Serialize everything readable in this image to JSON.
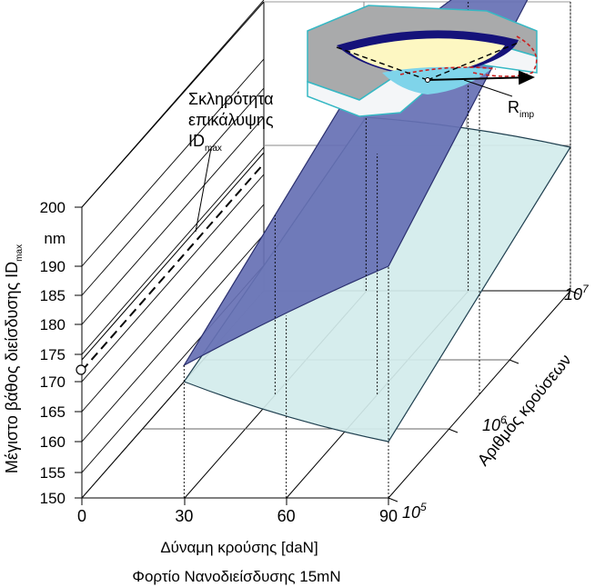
{
  "chart_data": {
    "type": "surface",
    "zlabel_main": "Μέγιστο βάθος διείσδυσης ID",
    "zlabel_sub": "max",
    "zunit": "nm",
    "z_ticks": [
      "150",
      "155",
      "160",
      "165",
      "170",
      "175",
      "180",
      "185",
      "190",
      "200"
    ],
    "z_tick_values": [
      150,
      155,
      160,
      165,
      170,
      175,
      180,
      185,
      190,
      200
    ],
    "x_label_1": "Δύναμη κρούσης [daN]",
    "x_label_2": "Φορτίο Νανοδιείσδυσης 15mN",
    "x_ticks": [
      "0",
      "30",
      "60",
      "90"
    ],
    "x_tick_values": [
      0,
      30,
      60,
      90
    ],
    "y_label": "Αριθμός κρούσεων",
    "y_ticks": [
      {
        "base": "10",
        "exp": "5"
      },
      {
        "base": "10",
        "exp": "6"
      },
      {
        "base": "10",
        "exp": "7"
      }
    ],
    "coating_hardness": {
      "line1": "Σκληρότητα",
      "line2": "επικάλυψης",
      "line3_main": "ID",
      "line3_sub": "max",
      "value_nm": 173
    },
    "inset_label_main": "R",
    "inset_label_sub": "imp",
    "series": [
      {
        "role": "upper-surface",
        "x": [
          30,
          90
        ],
        "y_log": [
          5,
          7
        ],
        "z_at_x30": [
          173,
          189
        ],
        "z_at_x90": [
          190,
          214
        ]
      },
      {
        "role": "lower-surface",
        "x": [
          30,
          90
        ],
        "y_log": [
          5,
          7
        ],
        "z_at_x30": [
          170,
          180
        ],
        "z_at_x90": [
          160,
          175
        ]
      }
    ],
    "colors": {
      "upper_fill": "#6670b4",
      "upper_stroke": "#2a2f6e",
      "lower_fill": "#d3ecec",
      "lower_stroke": "#1f3f4f",
      "inset_dark": "#15127a",
      "inset_light": "#fdf7c2",
      "inset_cyan": "#7fd4ea",
      "inset_red": "#cc1f1f"
    }
  }
}
